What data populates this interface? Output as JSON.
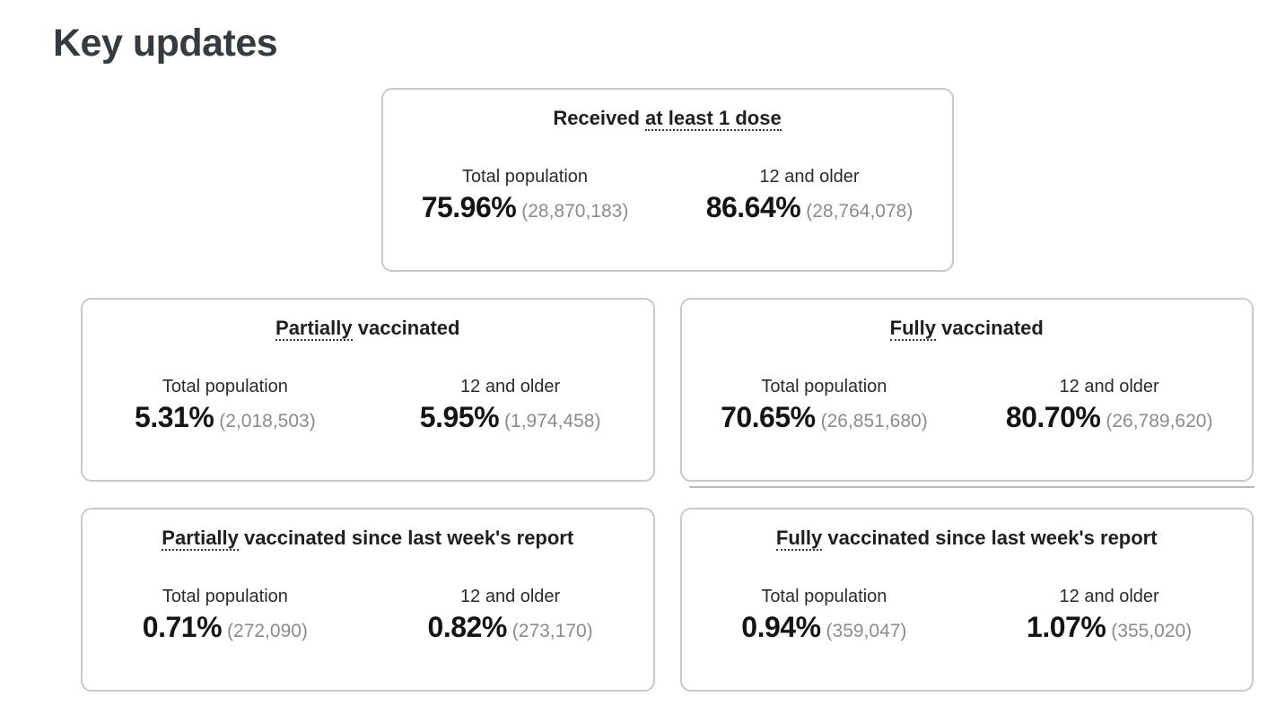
{
  "page": {
    "heading": "Key updates"
  },
  "stat_labels": {
    "total": "Total population",
    "twelve_plus": "12 and older"
  },
  "colors": {
    "card_border": "#c9c9c9",
    "heading_text": "#363b40",
    "percent_text": "#141414",
    "count_text": "#8b8b8b",
    "dotted_underline": "#3a3a3a"
  },
  "cards": [
    {
      "id": "received-at-least-1-dose",
      "title_prefix": "Received ",
      "title_term": "at least 1 dose",
      "title_suffix": "",
      "total": {
        "percent": "75.96%",
        "count": "(28,870,183)"
      },
      "twelve_plus": {
        "percent": "86.64%",
        "count": "(28,764,078)"
      }
    },
    {
      "id": "partially-vaccinated",
      "title_prefix": "",
      "title_term": "Partially",
      "title_suffix": " vaccinated",
      "total": {
        "percent": "5.31%",
        "count": "(2,018,503)"
      },
      "twelve_plus": {
        "percent": "5.95%",
        "count": "(1,974,458)"
      }
    },
    {
      "id": "fully-vaccinated",
      "title_prefix": "",
      "title_term": "Fully",
      "title_suffix": " vaccinated",
      "total": {
        "percent": "70.65%",
        "count": "(26,851,680)"
      },
      "twelve_plus": {
        "percent": "80.70%",
        "count": "(26,789,620)"
      }
    },
    {
      "id": "partially-vaccinated-since-last-week",
      "title_prefix": "",
      "title_term": "Partially",
      "title_suffix": " vaccinated since last week's report",
      "total": {
        "percent": "0.71%",
        "count": "(272,090)"
      },
      "twelve_plus": {
        "percent": "0.82%",
        "count": "(273,170)"
      }
    },
    {
      "id": "fully-vaccinated-since-last-week",
      "title_prefix": "",
      "title_term": "Fully",
      "title_suffix": " vaccinated since last week's report",
      "total": {
        "percent": "0.94%",
        "count": "(359,047)"
      },
      "twelve_plus": {
        "percent": "1.07%",
        "count": "(355,020)"
      }
    }
  ]
}
